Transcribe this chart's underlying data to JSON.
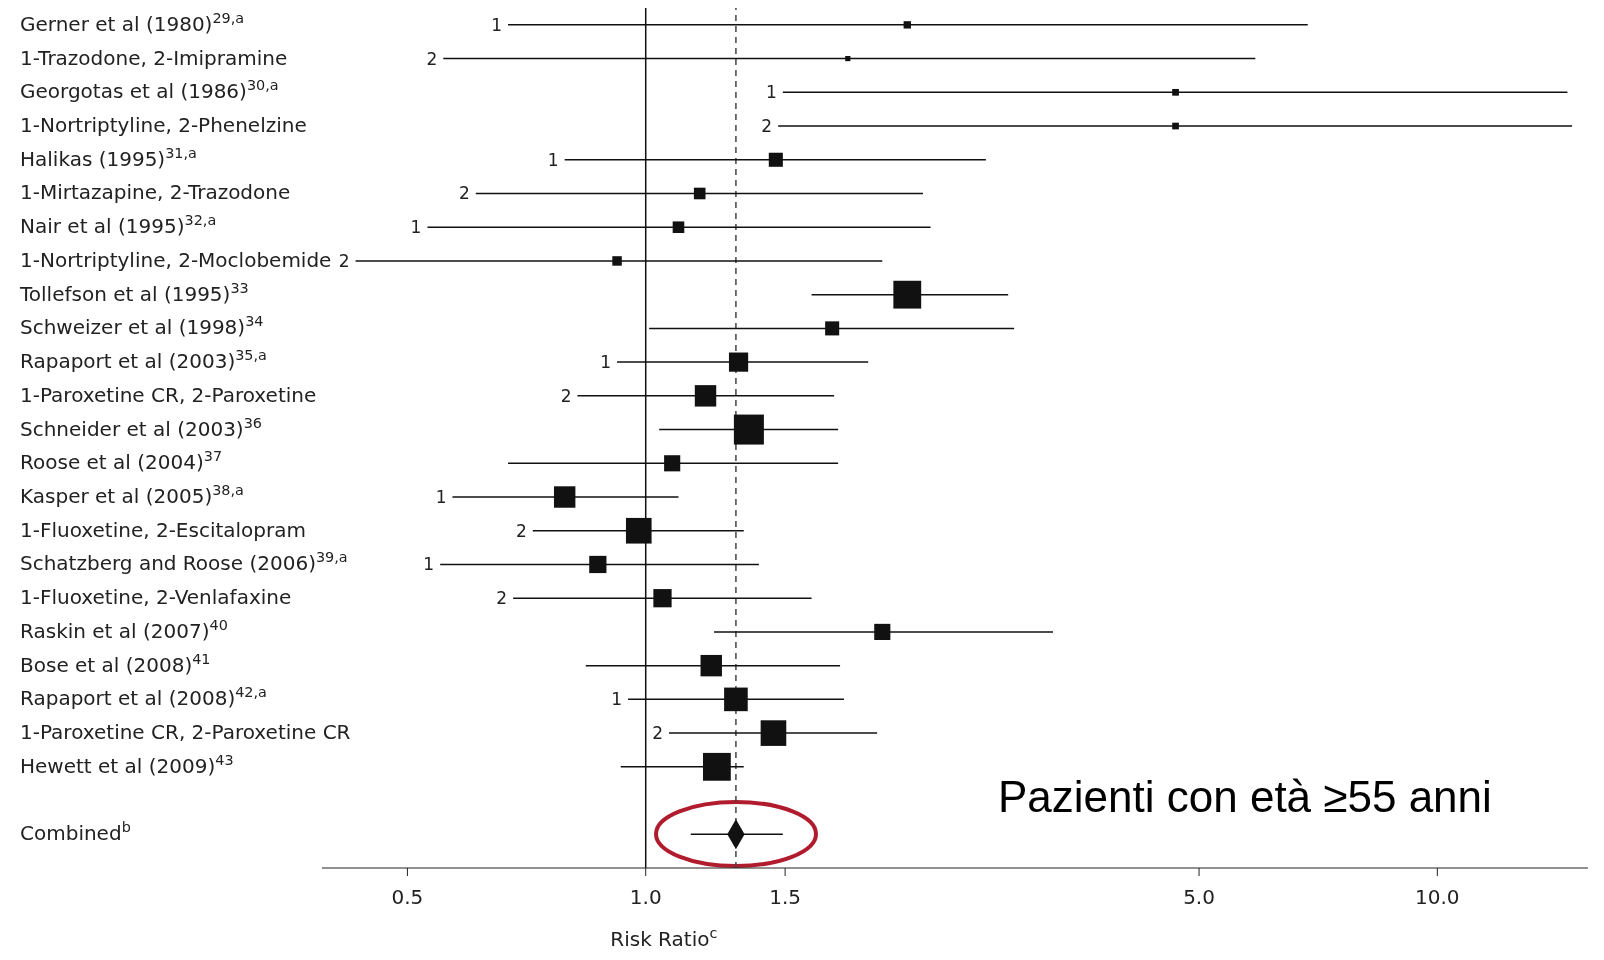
{
  "chart_data": {
    "type": "scatter",
    "orientation": "horizontal",
    "log": "x",
    "xlabel": "Risk Ratio$^{c}$",
    "categories": [
      "Gerner et al (1980)$^{29,a}$",
      "1-Trazodone, 2-Imipramine",
      "Georgotas et al (1986)$^{30,a}$",
      "1-Nortriptyline, 2-Phenelzine",
      "Halikas (1995)$^{31,a}$",
      "1-Mirtazapine, 2-Trazodone",
      "Nair et al (1995)$^{32,a}$",
      "1-Nortriptyline, 2-Moclobemide",
      "Tollefson et al (1995)$^{33}$",
      "Schweizer et al (1998)$^{34}$",
      "Rapaport et al (2003)$^{35,a}$",
      "1-Paroxetine CR, 2-Paroxetine",
      "Schneider et al (2003)$^{36}$",
      "Roose et al (2004)$^{37}$",
      "Kasper et al (2005)$^{38,a}$",
      "1-Fluoxetine, 2-Escitalopram",
      "Schatzberg and Roose (2006)$^{39,a}$",
      "1-Fluoxetine, 2-Venlafaxine",
      "Raskin et al (2007)$^{40}$",
      "Bose et al (2008)$^{41}$",
      "Rapaport et al (2008)$^{42,a}$",
      "1-Paroxetine CR, 2-Paroxetine CR",
      "Hewett et al (2009)$^{43}$",
      null,
      "Combined$^{b}$"
    ],
    "series": [
      {
        "color": "#111111",
        "marker": "square",
        "values": [
          2.14,
          1.8,
          4.67,
          4.67,
          1.46,
          1.17,
          1.1,
          0.92,
          2.14,
          1.72,
          1.31,
          1.19,
          1.35,
          1.08,
          0.79,
          0.98,
          0.87,
          1.05,
          1.99,
          1.21,
          1.3,
          1.45,
          1.23,
          null,
          null
        ],
        "errors": [
          [
            0.67,
            6.86
          ],
          [
            0.555,
            5.89
          ],
          [
            1.49,
            14.6
          ],
          [
            1.47,
            14.8
          ],
          [
            0.79,
            2.69
          ],
          [
            0.61,
            2.24
          ],
          [
            0.53,
            2.29
          ],
          [
            0.43,
            1.99
          ],
          [
            1.62,
            2.87
          ],
          [
            1.01,
            2.92
          ],
          [
            0.92,
            1.91
          ],
          [
            0.82,
            1.73
          ],
          [
            1.04,
            1.75
          ],
          [
            0.67,
            1.75
          ],
          [
            0.57,
            1.1
          ],
          [
            0.72,
            1.33
          ],
          [
            0.55,
            1.39
          ],
          [
            0.68,
            1.62
          ],
          [
            1.22,
            3.27
          ],
          [
            0.84,
            1.76
          ],
          [
            0.95,
            1.78
          ],
          [
            1.07,
            1.96
          ],
          [
            0.93,
            1.33
          ],
          null,
          null
        ],
        "sizes": [
          0.06,
          0.03,
          0.05,
          0.05,
          0.22,
          0.15,
          0.15,
          0.1,
          0.86,
          0.22,
          0.41,
          0.51,
          1,
          0.29,
          0.51,
          0.73,
          0.33,
          0.37,
          0.29,
          0.51,
          0.62,
          0.73,
          0.86,
          null,
          null
        ]
      },
      {
        "color": "#111111",
        "marker": "diamond",
        "values": [
          null,
          null,
          null,
          null,
          null,
          null,
          null,
          null,
          null,
          null,
          null,
          null,
          null,
          null,
          null,
          null,
          null,
          null,
          null,
          null,
          null,
          null,
          null,
          null,
          1.3
        ],
        "errors": [
          null,
          null,
          null,
          null,
          null,
          null,
          null,
          null,
          null,
          null,
          null,
          null,
          null,
          null,
          null,
          null,
          null,
          null,
          null,
          null,
          null,
          null,
          null,
          null,
          [
            1.14,
            1.49
          ]
        ]
      }
    ],
    "xlim": [
      0.39,
      15.5
    ],
    "xticks": [
      0.5,
      {
        "value": 1,
        "label": "1.0"
      },
      1.5,
      {
        "value": 5,
        "label": "5.0"
      },
      {
        "value": 10,
        "label": "10.0"
      }
    ],
    "ref_lines": [
      {
        "axis": "x",
        "value": 1,
        "color": "#111111",
        "line_style": "solid"
      },
      {
        "axis": "x",
        "value": 1.3,
        "color": "#444444",
        "line_style": "dashed"
      }
    ],
    "annotations": [
      "Pazienti con età ≥55 anni",
      "1",
      "2",
      "1",
      "2",
      "1",
      "2",
      "1",
      "2",
      "1",
      "2",
      "1",
      "2",
      "1",
      "2",
      "1",
      "2"
    ]
  }
}
